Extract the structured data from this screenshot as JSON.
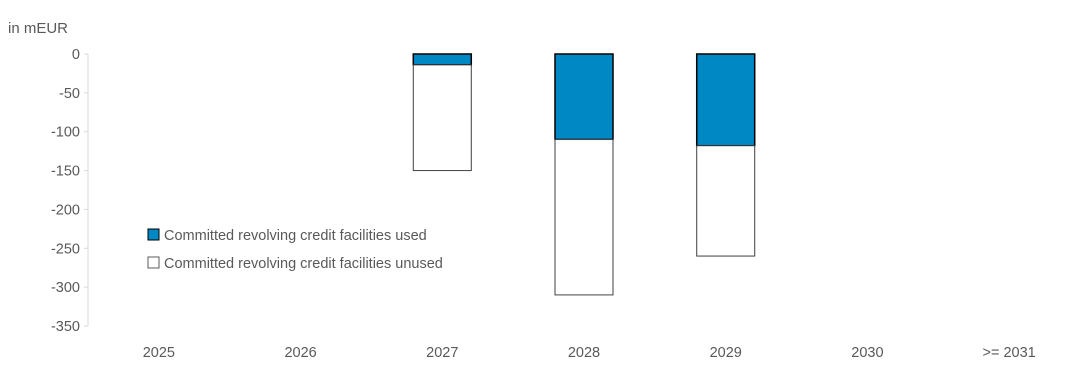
{
  "chart_data": {
    "type": "bar",
    "stacked": true,
    "ylabel": "in mEUR",
    "categories": [
      "2025",
      "2026",
      "2027",
      "2028",
      "2029",
      "2030",
      ">= 2031"
    ],
    "ylim": [
      -350,
      0
    ],
    "yticks": [
      0,
      -50,
      -100,
      -150,
      -200,
      -250,
      -300,
      -350
    ],
    "grid": false,
    "legend_position": "bottom-left",
    "series": [
      {
        "name": "Committed revolving credit facilities used",
        "color": "#0088c4",
        "values": [
          0,
          0,
          -14,
          -110,
          -118,
          0,
          0
        ]
      },
      {
        "name": "Committed revolving credit facilities unused",
        "color": "#ffffff",
        "values": [
          0,
          0,
          -136,
          -200,
          -142,
          0,
          0
        ]
      }
    ]
  }
}
